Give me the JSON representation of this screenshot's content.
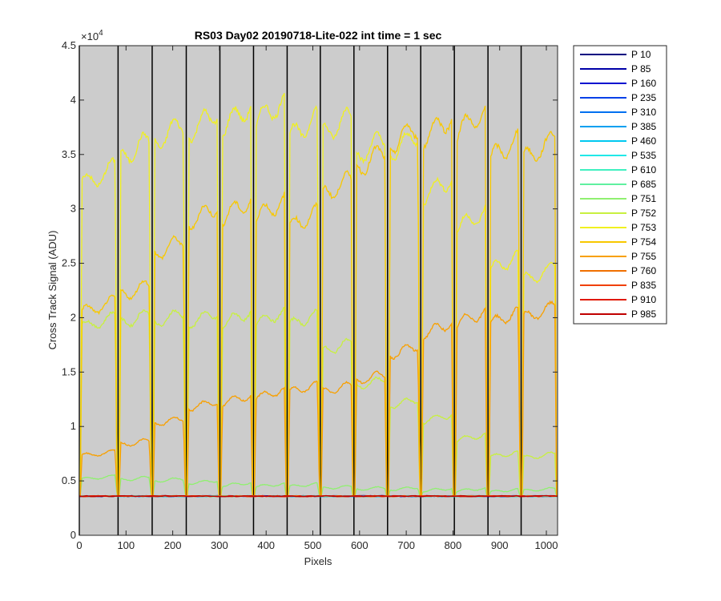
{
  "chart_data": {
    "type": "line",
    "title": "RS03 Day02 20190718-Lite-022 int time = 1 sec",
    "xlabel": "Pixels",
    "ylabel": "Cross Track Signal (ADU)",
    "y_exponent_label": "×10",
    "y_exponent_power": "4",
    "xlim": [
      0,
      1024
    ],
    "ylim": [
      0,
      4.5
    ],
    "x_ticks": [
      0,
      100,
      200,
      300,
      400,
      500,
      600,
      700,
      800,
      900,
      1000
    ],
    "x_tick_labels": [
      "0",
      "100",
      "200",
      "300",
      "400",
      "500",
      "600",
      "700",
      "800",
      "900",
      "1000"
    ],
    "y_ticks": [
      0,
      0.5,
      1,
      1.5,
      2,
      2.5,
      3,
      3.5,
      4,
      4.5
    ],
    "y_tick_labels": [
      "0",
      "0.5",
      "1",
      "1.5",
      "2",
      "2.5",
      "3",
      "3.5",
      "4",
      "4.5"
    ],
    "background_color": "#cccccc",
    "legend_location": "outside-top-right",
    "baseline_value": 0.36,
    "separator_lines_x": [
      0,
      83,
      156,
      229,
      301,
      373,
      445,
      516,
      588,
      660,
      731,
      803,
      875,
      946
    ],
    "segments": [
      {
        "start": 0,
        "end": 83
      },
      {
        "start": 83,
        "end": 156
      },
      {
        "start": 156,
        "end": 229
      },
      {
        "start": 229,
        "end": 301
      },
      {
        "start": 301,
        "end": 373
      },
      {
        "start": 373,
        "end": 445
      },
      {
        "start": 445,
        "end": 516
      },
      {
        "start": 516,
        "end": 588
      },
      {
        "start": 588,
        "end": 660
      },
      {
        "start": 660,
        "end": 731
      },
      {
        "start": 731,
        "end": 803
      },
      {
        "start": 803,
        "end": 875
      },
      {
        "start": 875,
        "end": 946
      },
      {
        "start": 946,
        "end": 1024
      }
    ],
    "series": [
      {
        "name": "P 10",
        "color": "#000080",
        "plateaus": []
      },
      {
        "name": "P 85",
        "color": "#0000a8",
        "plateaus": []
      },
      {
        "name": "P 160",
        "color": "#0010d0",
        "plateaus": []
      },
      {
        "name": "P 235",
        "color": "#0040e8",
        "plateaus": []
      },
      {
        "name": "P 310",
        "color": "#0070f0",
        "plateaus": []
      },
      {
        "name": "P 385",
        "color": "#00a0f0",
        "plateaus": []
      },
      {
        "name": "P 460",
        "color": "#00c8f0",
        "plateaus": []
      },
      {
        "name": "P 535",
        "color": "#20e8e8",
        "plateaus": []
      },
      {
        "name": "P 610",
        "color": "#40f0c0",
        "plateaus": []
      },
      {
        "name": "P 685",
        "color": "#60f0a0",
        "plateaus": []
      },
      {
        "name": "P 751",
        "color": "#90f070",
        "plateaus": [
          0.53,
          0.52,
          0.51,
          0.49,
          0.47,
          0.46,
          0.46,
          0.44,
          0.43,
          0.43,
          0.42,
          0.42,
          0.41,
          0.42
        ]
      },
      {
        "name": "P 752",
        "color": "#c8f040",
        "plateaus": [
          1.96,
          1.99,
          2.0,
          2.0,
          2.0,
          2.0,
          1.98,
          1.73,
          1.4,
          1.22,
          1.08,
          0.9,
          0.74,
          0.73
        ]
      },
      {
        "name": "P 753",
        "color": "#f0f020",
        "plateaus": [
          3.3,
          3.55,
          3.7,
          3.8,
          3.85,
          3.9,
          3.75,
          3.77,
          3.57,
          3.6,
          3.2,
          2.9,
          2.5,
          2.4
        ]
      },
      {
        "name": "P 754",
        "color": "#f8c800",
        "plateaus": [
          2.1,
          2.25,
          2.65,
          2.95,
          3.0,
          3.0,
          2.9,
          3.2,
          3.45,
          3.67,
          3.75,
          3.8,
          3.55,
          3.55
        ]
      },
      {
        "name": "P 755",
        "color": "#f8a000",
        "plateaus": [
          0.75,
          0.85,
          1.05,
          1.2,
          1.25,
          1.3,
          1.35,
          1.35,
          1.45,
          1.7,
          1.9,
          2.0,
          2.0,
          2.05
        ]
      },
      {
        "name": "P 760",
        "color": "#f07000",
        "plateaus": []
      },
      {
        "name": "P 835",
        "color": "#f04000",
        "plateaus": []
      },
      {
        "name": "P 910",
        "color": "#e01800",
        "plateaus": []
      },
      {
        "name": "P 985",
        "color": "#c00000",
        "plateaus": []
      }
    ]
  }
}
